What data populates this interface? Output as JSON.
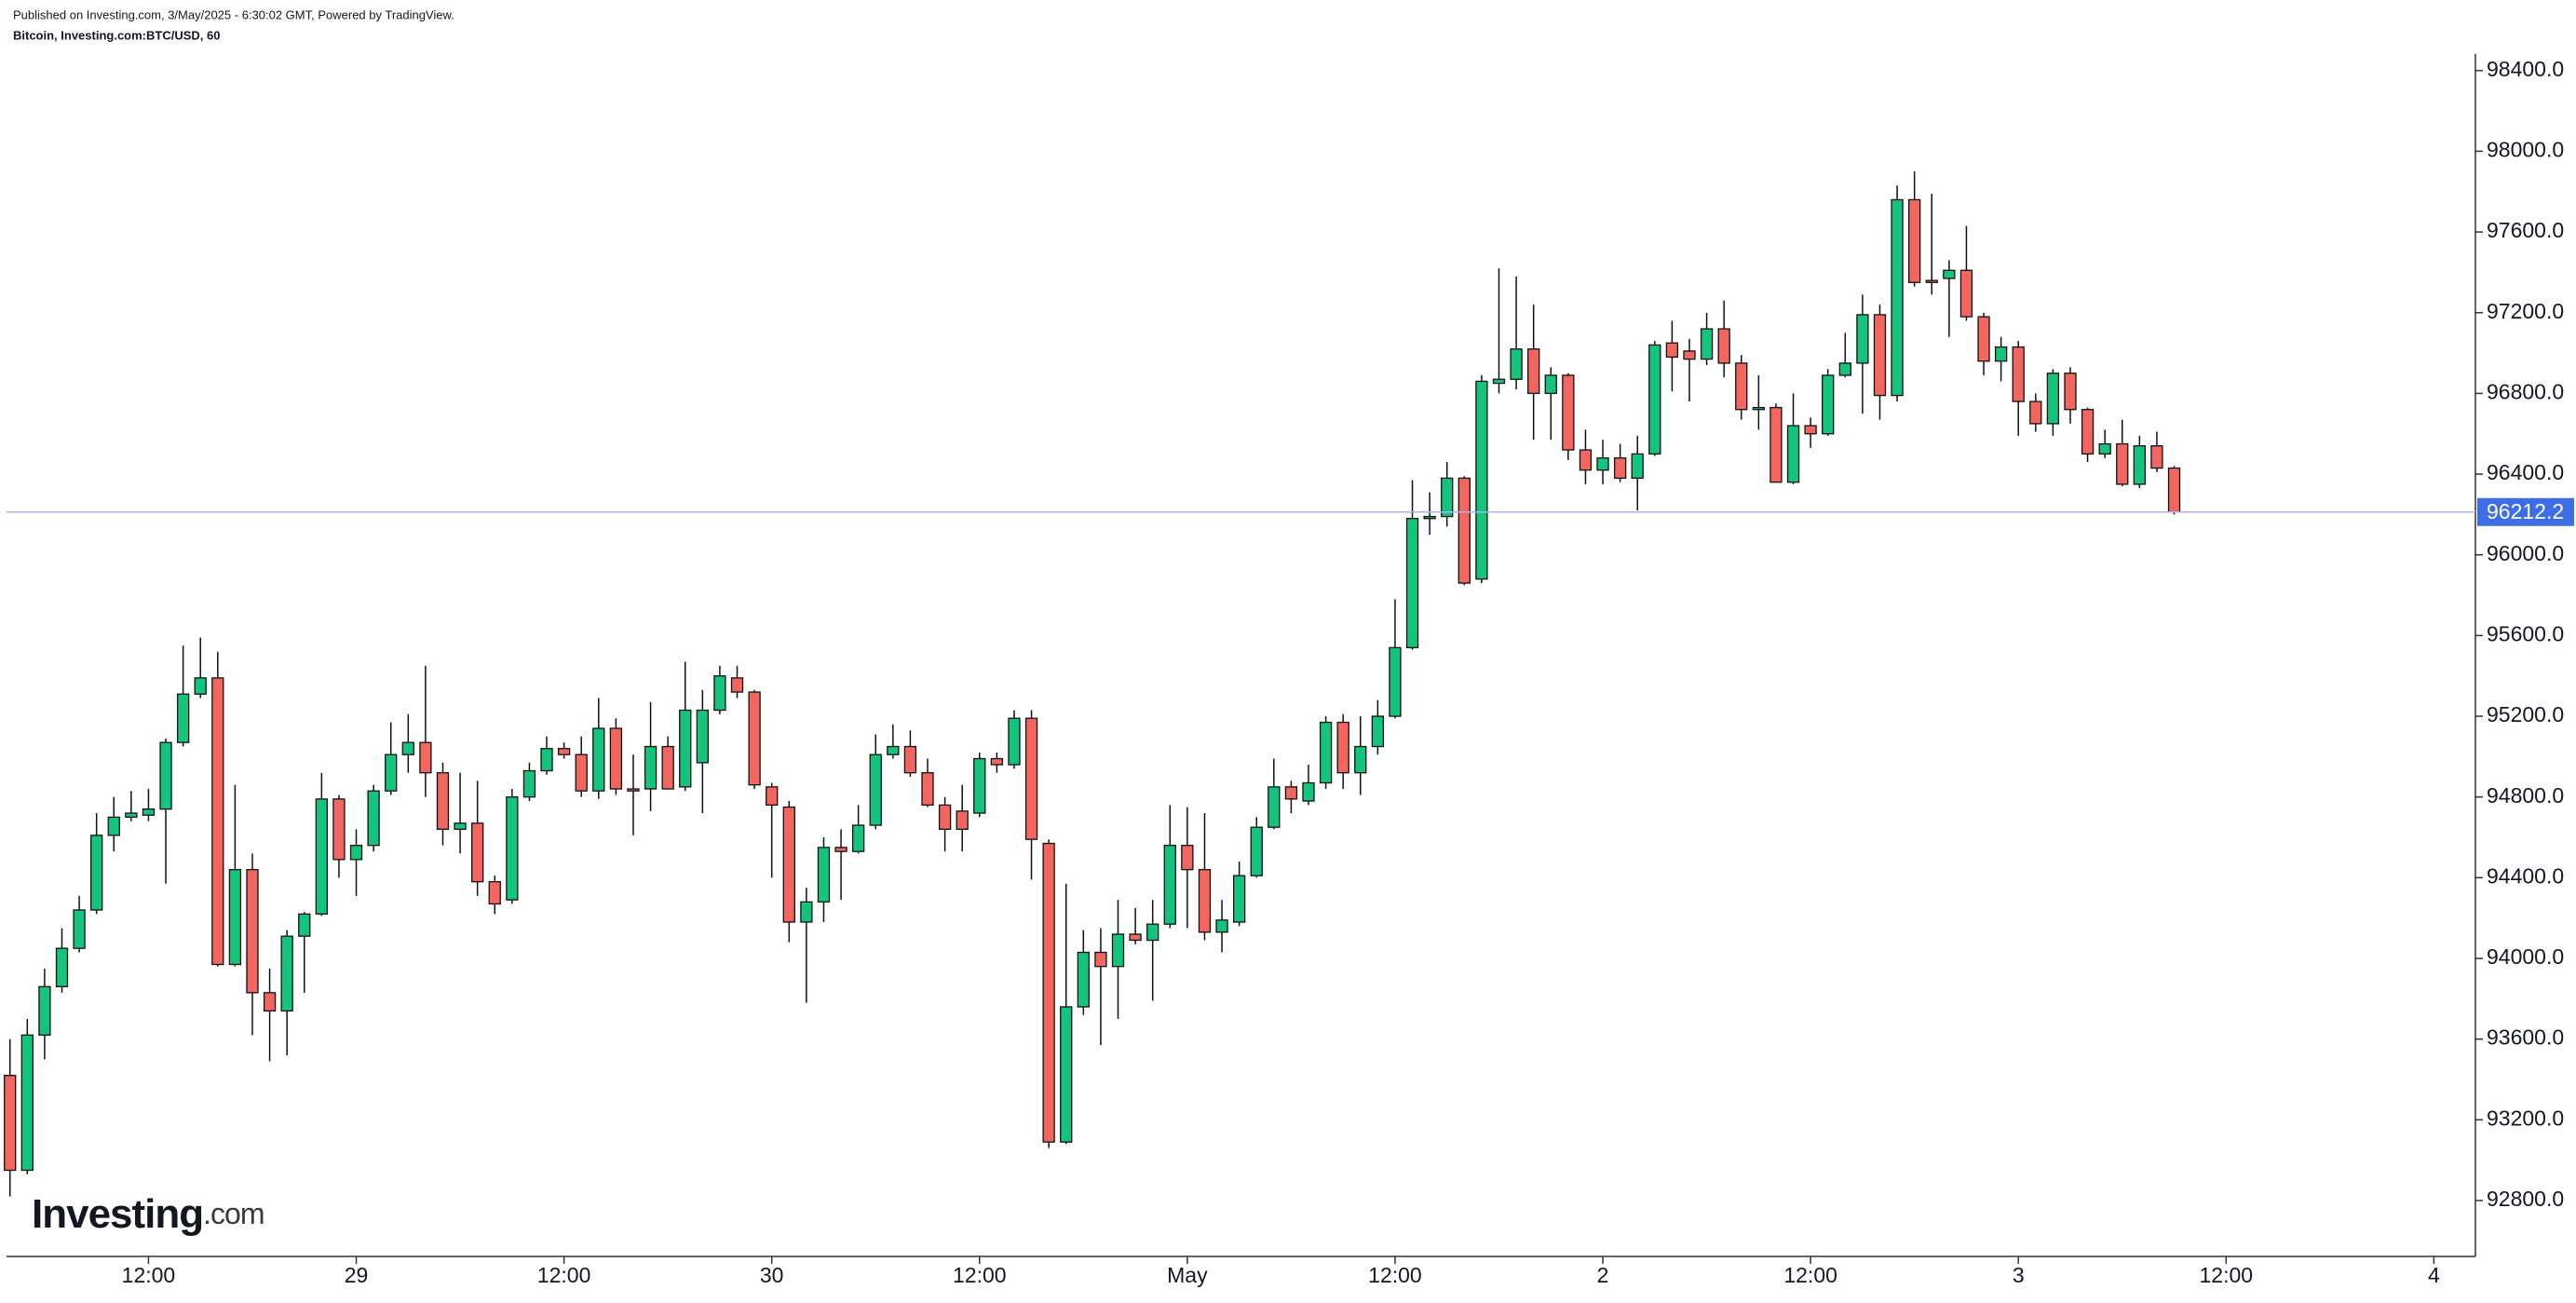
{
  "chart_data": {
    "type": "candlestick",
    "title": "Published on Investing.com, 3/May/2025 - 6:30:02 GMT, Powered by TradingView.",
    "subtitle": "Bitcoin, Investing.com:BTC/USD, 60",
    "logo": {
      "name": "Investing",
      "suffix": ".com"
    },
    "up_color": "#14c47d",
    "down_color": "#f2665f",
    "last_price_color": "#3d6ee6",
    "x": [
      0,
      1,
      2,
      3,
      4,
      5,
      6,
      7,
      8,
      9,
      10,
      11,
      12,
      13,
      14,
      15,
      16,
      17,
      18,
      19,
      20,
      21,
      22,
      23,
      24,
      25,
      26,
      27,
      28,
      29,
      30,
      31,
      32,
      33,
      34,
      35,
      36,
      37,
      38,
      39,
      40,
      41,
      42,
      43,
      44,
      45,
      46,
      47,
      48,
      49,
      50,
      51,
      52,
      53,
      54,
      55,
      56,
      57,
      58,
      59,
      60,
      61,
      62,
      63,
      64,
      65,
      66,
      67,
      68,
      69,
      70,
      71,
      72,
      73,
      74,
      75,
      76,
      77,
      78,
      79,
      80,
      81,
      82,
      83,
      84,
      85,
      86,
      87,
      88,
      89,
      90,
      91,
      92,
      93,
      94,
      95,
      96,
      97,
      98,
      99,
      100,
      101,
      102,
      103,
      104,
      105,
      106,
      107,
      108,
      109,
      110,
      111,
      112,
      113,
      114,
      115,
      116,
      117,
      118,
      119,
      120,
      121,
      122,
      123,
      124,
      125
    ],
    "open": [
      93420,
      92950,
      93620,
      93860,
      94050,
      94240,
      94610,
      94700,
      94710,
      94740,
      95070,
      95310,
      95390,
      93970,
      94440,
      93830,
      93740,
      94110,
      94220,
      94790,
      94490,
      94560,
      94830,
      95010,
      95070,
      94920,
      94640,
      94670,
      94380,
      94290,
      94800,
      94930,
      95040,
      95010,
      94830,
      95140,
      94840,
      94840,
      95050,
      94850,
      94970,
      95230,
      95390,
      95320,
      94850,
      94750,
      94180,
      94280,
      94550,
      94530,
      94660,
      95010,
      95050,
      94920,
      94760,
      94730,
      94720,
      94990,
      94960,
      95190,
      94570,
      93090,
      93760,
      94030,
      93960,
      94120,
      94090,
      94170,
      94560,
      94440,
      94130,
      94180,
      94410,
      94650,
      94850,
      94780,
      94870,
      95170,
      94920,
      95050,
      95200,
      95540,
      96180,
      96190,
      96380,
      95880,
      96850,
      96870,
      97020,
      96800,
      96890,
      96520,
      96420,
      96480,
      96380,
      96500,
      97050,
      97010,
      96970,
      97120,
      96950,
      96720,
      96730,
      96360,
      96640,
      96600,
      96890,
      96950,
      97190,
      96790,
      97760,
      97360,
      97370,
      97410,
      97180,
      96960,
      97030,
      96760,
      96650,
      96900,
      96720,
      96500,
      96550,
      96350,
      96540,
      96430
    ],
    "high": [
      93600,
      93700,
      93950,
      94150,
      94310,
      94720,
      94800,
      94830,
      94840,
      95090,
      95550,
      95590,
      95520,
      94860,
      94520,
      93950,
      94140,
      94230,
      94920,
      94810,
      94640,
      94860,
      95170,
      95210,
      95450,
      94970,
      94920,
      94880,
      94410,
      94840,
      94970,
      95100,
      95070,
      95100,
      95290,
      95190,
      95010,
      95270,
      95100,
      95470,
      95330,
      95450,
      95450,
      95330,
      94870,
      94780,
      94350,
      94600,
      94640,
      94760,
      95110,
      95160,
      95130,
      94990,
      94800,
      94860,
      95020,
      95020,
      95230,
      95230,
      94590,
      94370,
      94140,
      94150,
      94290,
      94250,
      94290,
      94760,
      94750,
      94720,
      94290,
      94480,
      94700,
      94990,
      94880,
      94960,
      95200,
      95210,
      95200,
      95280,
      95780,
      96370,
      96310,
      96460,
      96390,
      96890,
      97420,
      97380,
      97240,
      96930,
      96900,
      96620,
      96570,
      96550,
      96590,
      97060,
      97160,
      97070,
      97200,
      97260,
      96990,
      96890,
      96750,
      96800,
      96680,
      96920,
      97100,
      97290,
      97240,
      97830,
      97900,
      97790,
      97460,
      97630,
      97200,
      97080,
      97060,
      96800,
      96920,
      96930,
      96730,
      96620,
      96670,
      96590,
      96610,
      96440
    ],
    "low": [
      92820,
      92930,
      93500,
      93830,
      94030,
      94220,
      94530,
      94680,
      94680,
      94370,
      95050,
      95290,
      93960,
      93960,
      93620,
      93490,
      93520,
      93830,
      94210,
      94400,
      94310,
      94530,
      94810,
      94920,
      94800,
      94560,
      94520,
      94310,
      94220,
      94270,
      94780,
      94910,
      94990,
      94800,
      94790,
      94810,
      94610,
      94730,
      94840,
      94830,
      94720,
      95210,
      95290,
      94840,
      94400,
      94080,
      93780,
      94180,
      94290,
      94520,
      94640,
      94990,
      94900,
      94750,
      94530,
      94530,
      94700,
      94920,
      94940,
      94390,
      93060,
      93080,
      93720,
      93570,
      93700,
      94070,
      93790,
      94150,
      94150,
      94090,
      94030,
      94160,
      94400,
      94640,
      94720,
      94760,
      94840,
      94840,
      94810,
      95010,
      95190,
      95530,
      96100,
      96140,
      95850,
      95860,
      96800,
      96820,
      96570,
      96570,
      96470,
      96350,
      96350,
      96360,
      96220,
      96490,
      96810,
      96760,
      96940,
      96880,
      96670,
      96620,
      96360,
      96350,
      96530,
      96590,
      96880,
      96700,
      96670,
      96760,
      97330,
      97290,
      97080,
      97160,
      96890,
      96860,
      96590,
      96610,
      96590,
      96650,
      96460,
      96480,
      96340,
      96330,
      96410,
      96200
    ],
    "close": [
      92950,
      93620,
      93860,
      94050,
      94240,
      94610,
      94700,
      94720,
      94740,
      95070,
      95310,
      95390,
      93970,
      94440,
      93830,
      93740,
      94110,
      94220,
      94790,
      94490,
      94560,
      94830,
      95010,
      95070,
      94920,
      94640,
      94670,
      94380,
      94270,
      94800,
      94930,
      95040,
      95010,
      94830,
      95140,
      94840,
      94830,
      95050,
      94840,
      95230,
      95230,
      95400,
      95320,
      94860,
      94760,
      94180,
      94280,
      94550,
      94530,
      94660,
      95010,
      95050,
      94920,
      94760,
      94640,
      94640,
      94990,
      94960,
      95190,
      94590,
      93090,
      93760,
      94030,
      93960,
      94120,
      94090,
      94170,
      94560,
      94440,
      94130,
      94190,
      94410,
      94650,
      94850,
      94790,
      94870,
      95170,
      94920,
      95050,
      95200,
      95540,
      96180,
      96190,
      96380,
      95860,
      96860,
      96870,
      97020,
      96800,
      96890,
      96520,
      96420,
      96480,
      96380,
      96500,
      97040,
      96980,
      96970,
      97120,
      96950,
      96720,
      96730,
      96360,
      96640,
      96600,
      96890,
      96950,
      97190,
      96790,
      97760,
      97350,
      97350,
      97410,
      97180,
      96960,
      97030,
      96760,
      96650,
      96900,
      96720,
      96500,
      96550,
      96350,
      96540,
      96430,
      96212.2
    ],
    "xlim": [
      -0.2,
      142.4
    ],
    "xticks": [
      {
        "value": 8,
        "label": "12:00"
      },
      {
        "value": 20,
        "label": "29"
      },
      {
        "value": 32,
        "label": "12:00"
      },
      {
        "value": 44,
        "label": "30"
      },
      {
        "value": 56,
        "label": "12:00"
      },
      {
        "value": 68,
        "label": "May"
      },
      {
        "value": 80,
        "label": "12:00"
      },
      {
        "value": 92,
        "label": "2"
      },
      {
        "value": 104,
        "label": "12:00"
      },
      {
        "value": 116,
        "label": "3"
      },
      {
        "value": 128,
        "label": "12:00"
      },
      {
        "value": 140,
        "label": "4"
      }
    ],
    "ylim": [
      92523,
      98482
    ],
    "yticks": [
      {
        "value": 92800,
        "label": "92800.0"
      },
      {
        "value": 93200,
        "label": "93200.0"
      },
      {
        "value": 93600,
        "label": "93600.0"
      },
      {
        "value": 94000,
        "label": "94000.0"
      },
      {
        "value": 94400,
        "label": "94400.0"
      },
      {
        "value": 94800,
        "label": "94800.0"
      },
      {
        "value": 95200,
        "label": "95200.0"
      },
      {
        "value": 95600,
        "label": "95600.0"
      },
      {
        "value": 96000,
        "label": "96000.0"
      },
      {
        "value": 96400,
        "label": "96400.0"
      },
      {
        "value": 96800,
        "label": "96800.0"
      },
      {
        "value": 97200,
        "label": "97200.0"
      },
      {
        "value": 97600,
        "label": "97600.0"
      },
      {
        "value": 98000,
        "label": "98000.0"
      },
      {
        "value": 98400,
        "label": "98400.0"
      }
    ]
  }
}
